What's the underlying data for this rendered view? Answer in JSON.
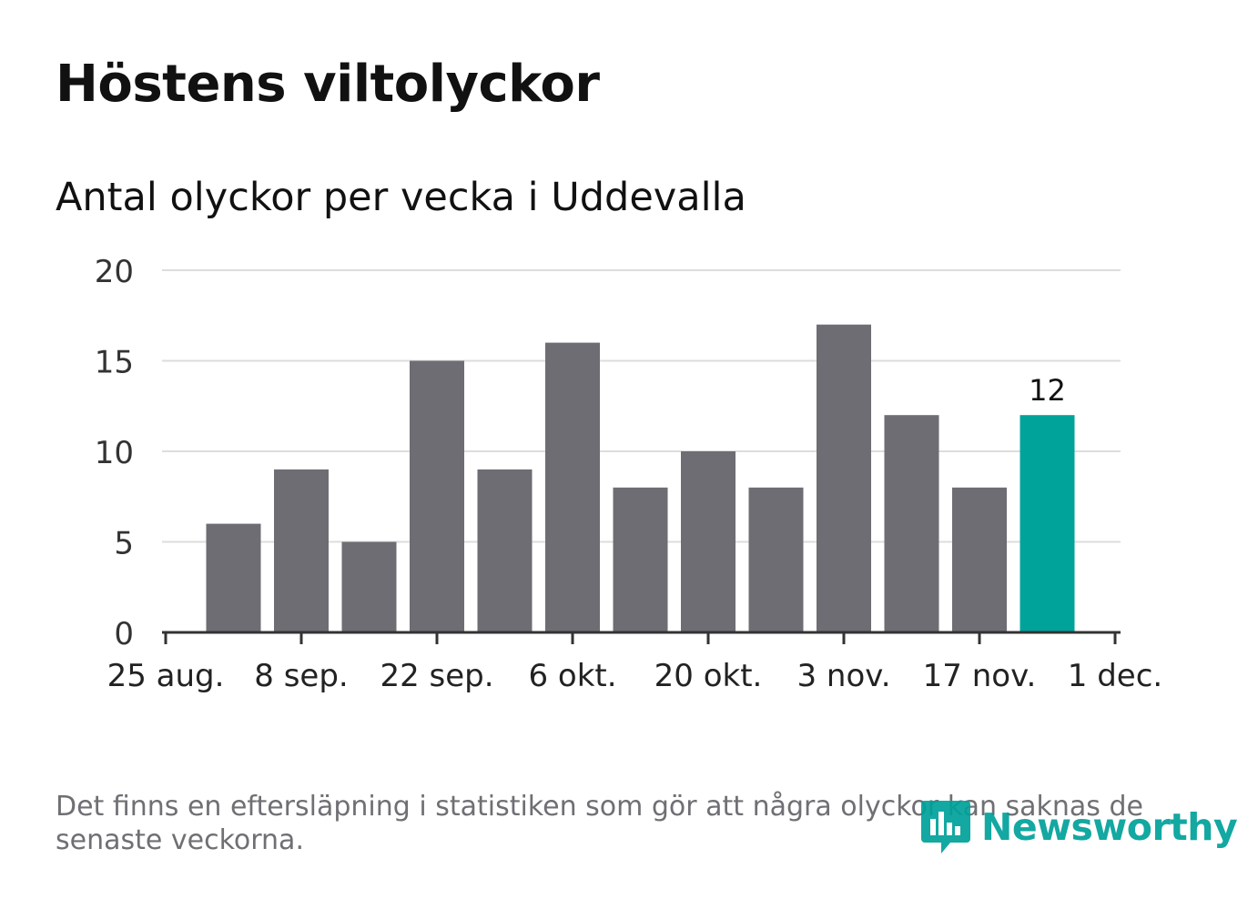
{
  "title": "Höstens viltolyckor",
  "subtitle": "Antal olyckor per vecka i Uddevalla",
  "footnote": "Det finns en eftersläpning i statistiken som gör att några olyckor kan saknas de senaste veckorna.",
  "logo": {
    "text": "Newsworthy",
    "icon": "newsworthy-logo-icon"
  },
  "colors": {
    "bar": "#6e6d73",
    "highlight": "#00a39a",
    "grid": "#dddddd",
    "axis": "#333333",
    "text": "#111111",
    "muted": "#6f6f74",
    "brand": "#00a19a"
  },
  "chart_data": {
    "type": "bar",
    "title": "Höstens viltolyckor",
    "subtitle": "Antal olyckor per vecka i Uddevalla",
    "xlabel": "",
    "ylabel": "",
    "ylim": [
      0,
      20
    ],
    "yticks": [
      0,
      5,
      10,
      15,
      20
    ],
    "grid": true,
    "values": [
      6,
      9,
      5,
      15,
      9,
      16,
      8,
      10,
      8,
      17,
      12,
      8,
      12
    ],
    "highlight_index": 12,
    "data_labels": [
      {
        "index": 12,
        "text": "12"
      }
    ],
    "xticks": [
      {
        "week_offset": 0,
        "label": "25 aug."
      },
      {
        "week_offset": 2,
        "label": "8 sep."
      },
      {
        "week_offset": 4,
        "label": "22 sep."
      },
      {
        "week_offset": 6,
        "label": "6 okt."
      },
      {
        "week_offset": 8,
        "label": "20 okt."
      },
      {
        "week_offset": 10,
        "label": "3 nov."
      },
      {
        "week_offset": 12,
        "label": "17 nov."
      },
      {
        "week_offset": 14,
        "label": "1 dec."
      }
    ]
  }
}
